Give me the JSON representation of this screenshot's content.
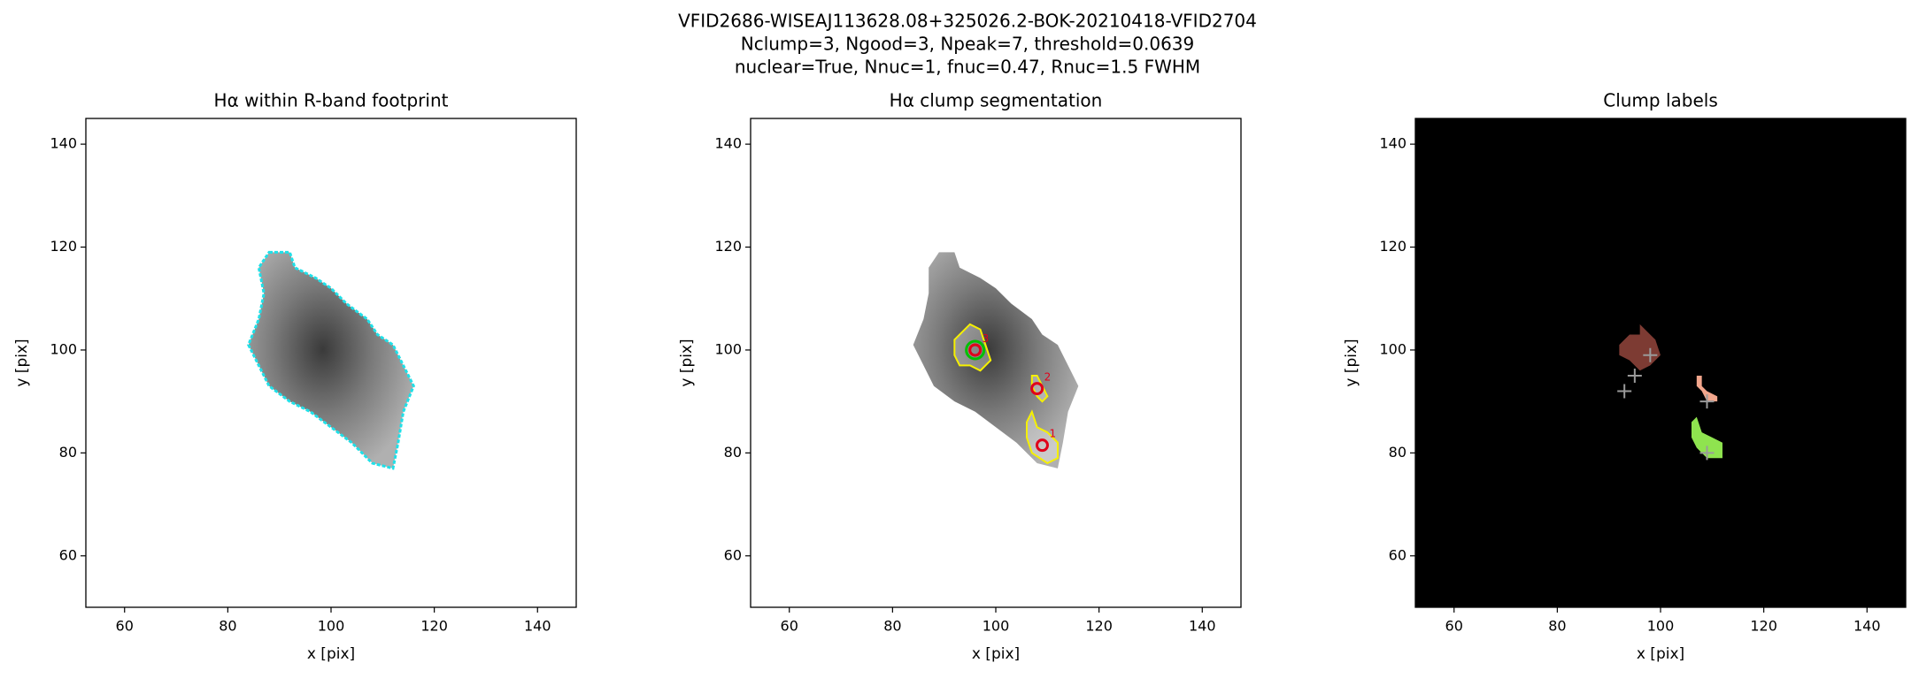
{
  "figure": {
    "title_lines": [
      "VFID2686-WISEAJ113628.08+325026.2-BOK-20210418-VFID2704",
      "Nclump=3, Ngood=3, Npeak=7, threshold=0.0639",
      "nuclear=True, Nnuc=1, fnuc=0.47, Rnuc=1.5 FWHM"
    ]
  },
  "chart_data": [
    {
      "type": "image",
      "title": "Hα within R-band footprint",
      "xlabel": "x [pix]",
      "ylabel": "y [pix]",
      "xlim": [
        52.5,
        147.5
      ],
      "ylim": [
        50,
        145
      ],
      "xticks": [
        60,
        80,
        100,
        120,
        140
      ],
      "yticks": [
        60,
        80,
        100,
        120,
        140
      ],
      "facecolor": "#ffffff",
      "footprint": {
        "color": "#1fe0e8",
        "x": [
          88,
          92,
          93,
          97,
          100,
          103,
          107,
          109,
          112,
          114,
          116,
          114,
          113,
          112,
          108,
          104,
          100,
          96,
          92,
          88,
          86,
          84,
          86,
          87,
          86
        ],
        "y": [
          119,
          119,
          116,
          114,
          112,
          109,
          106,
          103,
          101,
          97,
          93,
          88,
          82,
          77,
          78,
          82,
          85,
          88,
          90,
          93,
          97,
          101,
          106,
          111,
          116
        ]
      }
    },
    {
      "type": "image",
      "title": "Hα clump segmentation",
      "xlabel": "x [pix]",
      "ylabel": "y [pix]",
      "xlim": [
        52.5,
        147.5
      ],
      "ylim": [
        50,
        145
      ],
      "xticks": [
        60,
        80,
        100,
        120,
        140
      ],
      "yticks": [
        60,
        80,
        100,
        120,
        140
      ],
      "facecolor": "#ffffff",
      "footprint": {
        "x": [
          89,
          92,
          93,
          97,
          100,
          103,
          107,
          109,
          112,
          114,
          116,
          114,
          113,
          112,
          108,
          104,
          100,
          96,
          92,
          88,
          86,
          84,
          86,
          87,
          87
        ],
        "y": [
          119,
          119,
          116,
          114,
          112,
          109,
          106,
          103,
          101,
          97,
          93,
          88,
          82,
          77,
          78,
          82,
          85,
          88,
          90,
          93,
          97,
          101,
          106,
          111,
          116
        ]
      },
      "clump_contours": {
        "color": "#f5f000",
        "polygons": [
          {
            "x": [
              92,
              95,
              97,
              98,
              99,
              97,
              95,
              93,
              92
            ],
            "y": [
              102,
              105,
              104,
              101,
              98,
              96,
              97,
              97,
              99
            ]
          },
          {
            "x": [
              107,
              108,
              109,
              110,
              109,
              108,
              107
            ],
            "y": [
              95,
              95,
              93,
              91,
              90,
              91,
              93
            ]
          },
          {
            "x": [
              106,
              107,
              108,
              110,
              112,
              112,
              110,
              107,
              106
            ],
            "y": [
              86,
              88,
              85,
              84,
              82,
              79,
              78,
              80,
              83
            ]
          }
        ]
      },
      "peaks": [
        {
          "label": "1",
          "x": 109,
          "y": 81.5
        },
        {
          "label": "2",
          "x": 108,
          "y": 92.5
        },
        {
          "label": "3",
          "x": 96,
          "y": 100
        }
      ],
      "peak_color": "#e0001a",
      "nucleus": {
        "x": 96,
        "y": 100,
        "color": "#00c000"
      }
    },
    {
      "type": "image",
      "title": "Clump labels",
      "xlabel": "x [pix]",
      "ylabel": "y [pix]",
      "xlim": [
        52.5,
        147.5
      ],
      "ylim": [
        50,
        145
      ],
      "xticks": [
        60,
        80,
        100,
        120,
        140
      ],
      "yticks": [
        60,
        80,
        100,
        120,
        140
      ],
      "facecolor": "#000000",
      "clumps": [
        {
          "color": "#7d3b33",
          "x": [
            92,
            94,
            96,
            96,
            98,
            99,
            100,
            98,
            96,
            94,
            92
          ],
          "y": [
            101,
            103,
            103,
            105,
            103,
            102,
            99,
            97,
            96,
            98,
            99
          ]
        },
        {
          "color": "#f2a68c",
          "x": [
            107,
            108,
            108,
            109,
            111,
            111,
            109,
            108,
            107
          ],
          "y": [
            95,
            95,
            93,
            92,
            91,
            90,
            90,
            92,
            93
          ]
        },
        {
          "color": "#8fe34f",
          "x": [
            106,
            107,
            108,
            110,
            112,
            112,
            109,
            107,
            106
          ],
          "y": [
            86,
            87,
            84,
            83,
            82,
            79,
            79,
            81,
            83
          ]
        }
      ],
      "markers": {
        "color": "#9a9a9a",
        "x": [
          93,
          95,
          98,
          109,
          109
        ],
        "y": [
          92,
          95,
          99,
          90,
          80
        ]
      }
    }
  ]
}
